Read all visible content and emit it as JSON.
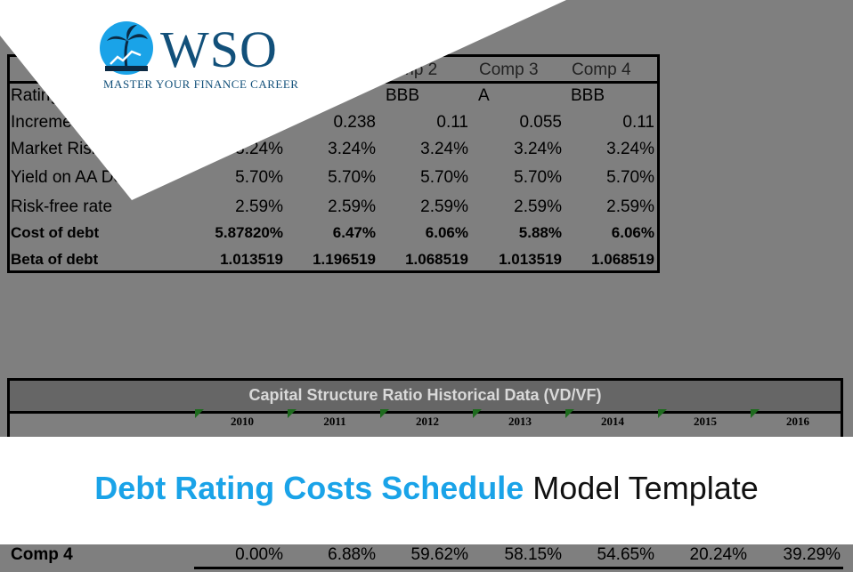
{
  "top_table": {
    "headers": [
      "mp 2",
      "Comp 3",
      "Comp 4"
    ],
    "rows": [
      {
        "label": "Rating",
        "values": [
          "",
          "",
          "BBB",
          "A",
          "BBB"
        ],
        "bold": false
      },
      {
        "label": "Increme",
        "values": [
          "",
          "0.238",
          "0.11",
          "0.055",
          "0.11"
        ],
        "bold": false
      },
      {
        "label": "Market Risk",
        "values": [
          "3.24%",
          "3.24%",
          "3.24%",
          "3.24%",
          "3.24%"
        ],
        "bold": false
      },
      {
        "label": "Yield on AA De",
        "values": [
          "5.70%",
          "5.70%",
          "5.70%",
          "5.70%",
          "5.70%"
        ],
        "bold": false
      },
      {
        "label": "Risk-free rate",
        "values": [
          "2.59%",
          "2.59%",
          "2.59%",
          "2.59%",
          "2.59%"
        ],
        "bold": false
      },
      {
        "label": "Cost of debt",
        "values": [
          "5.87820%",
          "6.47%",
          "6.06%",
          "5.88%",
          "6.06%"
        ],
        "bold": true
      },
      {
        "label": "Beta of debt",
        "values": [
          "1.013519",
          "1.196519",
          "1.068519",
          "1.013519",
          "1.068519"
        ],
        "bold": true
      }
    ]
  },
  "bottom_table": {
    "title": "Capital Structure Ratio Historical Data (VD/VF)",
    "years": [
      "2010",
      "2011",
      "2012",
      "2013",
      "2014",
      "2015",
      "2016"
    ]
  },
  "banner": {
    "highlight": "Debt Rating Costs Schedule",
    "rest": " Model Template"
  },
  "bottom_row": {
    "label": "Comp 4",
    "values": [
      "0.00%",
      "6.88%",
      "59.62%",
      "58.15%",
      "54.65%",
      "20.24%",
      "39.29%"
    ]
  },
  "logo": {
    "text": "WSO",
    "tagline": "MASTER YOUR FINANCE CAREER"
  },
  "colors": {
    "background": "#7f7f7f",
    "banner_highlight": "#1aa3e8",
    "logo": "#12507a"
  }
}
